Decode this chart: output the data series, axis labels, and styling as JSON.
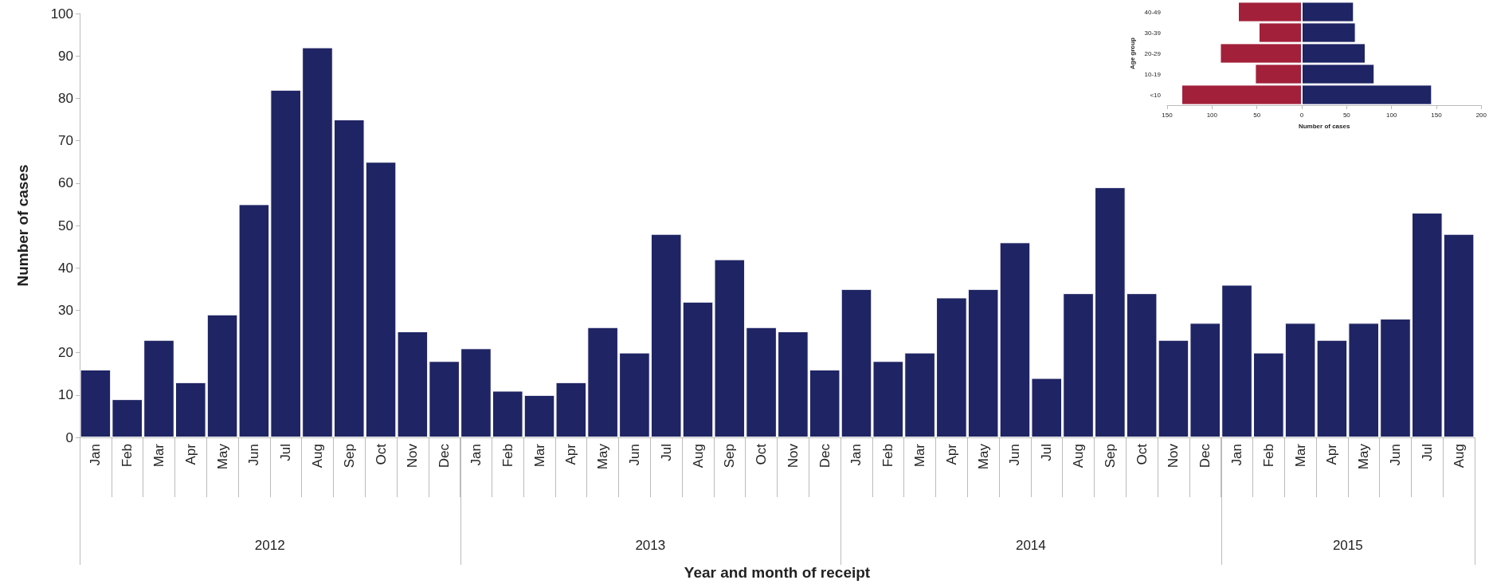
{
  "chart_data": [
    {
      "type": "bar",
      "xlabel": "Year and month of receipt",
      "ylabel": "Number of cases",
      "categories": [
        "Jan",
        "Feb",
        "Mar",
        "Apr",
        "May",
        "Jun",
        "Jul",
        "Aug",
        "Sep",
        "Oct",
        "Nov",
        "Dec",
        "Jan",
        "Feb",
        "Mar",
        "Apr",
        "May",
        "Jun",
        "Jul",
        "Aug",
        "Sep",
        "Oct",
        "Nov",
        "Dec",
        "Jan",
        "Feb",
        "Mar",
        "Apr",
        "May",
        "Jun",
        "Jul",
        "Aug",
        "Sep",
        "Oct",
        "Nov",
        "Dec",
        "Jan",
        "Feb",
        "Mar",
        "Apr",
        "May",
        "Jun",
        "Jul",
        "Aug"
      ],
      "values": [
        16,
        9,
        23,
        13,
        29,
        55,
        82,
        92,
        75,
        65,
        25,
        18,
        21,
        11,
        10,
        13,
        26,
        20,
        48,
        32,
        42,
        26,
        25,
        16,
        35,
        18,
        20,
        33,
        35,
        46,
        14,
        34,
        59,
        34,
        23,
        27,
        36,
        20,
        27,
        23,
        27,
        28,
        53,
        48
      ],
      "color": "#1f2464",
      "ylim": [
        0,
        100
      ],
      "yticks": [
        0,
        10,
        20,
        30,
        40,
        50,
        60,
        70,
        80,
        90,
        100
      ],
      "annotations": [
        "2012",
        "2013",
        "2014",
        "2015"
      ],
      "grid": false
    },
    {
      "type": "bar",
      "orientation": "horizontal",
      "stacked": true,
      "xlabel": "Number of cases",
      "ylabel": "Age group",
      "categories": [
        "40-49",
        "30-39",
        "20-29",
        "10-19",
        "<10"
      ],
      "series": [
        {
          "color": "#a3203a",
          "values": [
            -71,
            -48,
            -91,
            -52,
            -134
          ]
        },
        {
          "color": "#1f2464",
          "values": [
            58,
            60,
            71,
            81,
            145
          ]
        }
      ],
      "xlim": [
        -150,
        200
      ],
      "xticks": [
        {
          "value": -150,
          "label": "150"
        },
        {
          "value": -100,
          "label": "100"
        },
        {
          "value": -50,
          "label": "50"
        },
        0,
        50,
        100,
        150,
        200
      ],
      "grid": false
    }
  ]
}
